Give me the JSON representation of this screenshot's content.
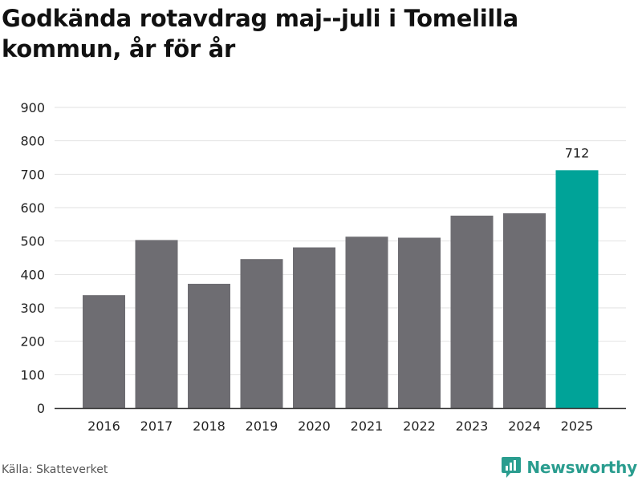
{
  "title": "Godkända rotavdrag maj--juli i Tomelilla kommun, år för år",
  "source": "Källa: Skatteverket",
  "brand": {
    "name": "Newsworthy",
    "icon": "newsworthy-logo-icon",
    "color": "#2a9d8f"
  },
  "colors": {
    "bar": "#6e6d72",
    "highlight": "#00a398",
    "grid": "#e2e2e2",
    "axis": "#333333"
  },
  "chart_data": {
    "type": "bar",
    "categories": [
      "2016",
      "2017",
      "2018",
      "2019",
      "2020",
      "2021",
      "2022",
      "2023",
      "2024",
      "2025"
    ],
    "values": [
      338,
      503,
      372,
      446,
      481,
      513,
      510,
      576,
      583,
      712
    ],
    "highlight_index": 9,
    "data_labels": [
      {
        "index": 9,
        "text": "712"
      }
    ],
    "yticks": [
      "0",
      "100",
      "200",
      "300",
      "400",
      "500",
      "600",
      "700",
      "800",
      "900"
    ],
    "ylim": [
      0,
      900
    ],
    "grid": true,
    "legend": "none",
    "xlabel": "",
    "ylabel": ""
  }
}
